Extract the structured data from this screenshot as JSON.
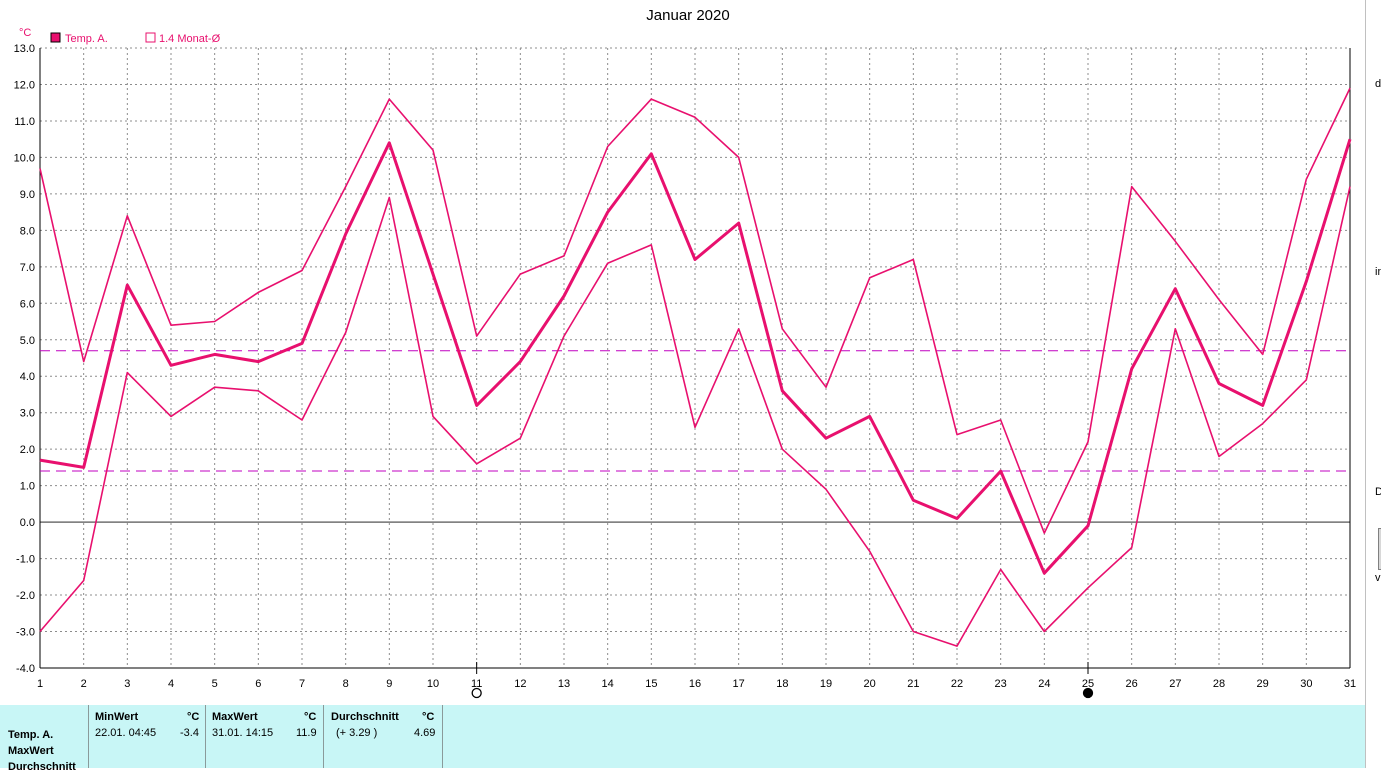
{
  "chart_data": {
    "type": "line",
    "title": "Januar 2020",
    "ylabel": "°C",
    "ylim": [
      -4.0,
      13.0
    ],
    "yticks": [
      "13.0",
      "12.0",
      "11.0",
      "10.0",
      "9.0",
      "8.0",
      "7.0",
      "6.0",
      "5.0",
      "4.0",
      "3.0",
      "2.0",
      "1.0",
      "0.0",
      "-1.0",
      "-2.0",
      "-3.0",
      "-4.0"
    ],
    "x": [
      1,
      2,
      3,
      4,
      5,
      6,
      7,
      8,
      9,
      10,
      11,
      12,
      13,
      14,
      15,
      16,
      17,
      18,
      19,
      20,
      21,
      22,
      23,
      24,
      25,
      26,
      27,
      28,
      29,
      30,
      31
    ],
    "grid": true,
    "legend_position": "top-left",
    "legend": [
      {
        "label": "Temp. A.",
        "marker": "filled"
      },
      {
        "label": "1.4 Monat-Ø",
        "marker": "hollow"
      }
    ],
    "series": [
      {
        "name": "Temp. A.",
        "role": "mean",
        "values": [
          1.7,
          1.5,
          6.5,
          4.3,
          4.6,
          4.4,
          4.9,
          7.9,
          10.4,
          6.8,
          3.2,
          4.4,
          6.2,
          8.5,
          10.1,
          7.2,
          8.2,
          3.6,
          2.3,
          2.9,
          0.6,
          0.1,
          1.4,
          -1.4,
          -0.1,
          4.2,
          6.4,
          3.8,
          3.2,
          6.6,
          10.5
        ]
      },
      {
        "role": "max",
        "values": [
          9.7,
          4.4,
          8.4,
          5.4,
          5.5,
          6.3,
          6.9,
          9.2,
          11.6,
          10.2,
          5.1,
          6.8,
          7.3,
          10.3,
          11.6,
          11.1,
          10.0,
          5.3,
          3.7,
          6.7,
          7.2,
          2.4,
          2.8,
          -0.3,
          2.2,
          9.2,
          7.7,
          6.1,
          4.6,
          9.4,
          11.9
        ]
      },
      {
        "role": "min",
        "values": [
          -3.0,
          -1.6,
          4.1,
          2.9,
          3.7,
          3.6,
          2.8,
          5.2,
          8.9,
          2.9,
          1.6,
          2.3,
          5.1,
          7.1,
          7.6,
          2.6,
          5.3,
          2.0,
          0.9,
          -0.8,
          -3.0,
          -3.4,
          -1.3,
          -3.0,
          -1.8,
          -0.7,
          5.3,
          1.8,
          2.7,
          3.9,
          9.2
        ]
      }
    ],
    "reference_lines": [
      4.7,
      1.4
    ],
    "moon_phases": [
      {
        "day": 11,
        "phase": "full"
      },
      {
        "day": 25,
        "phase": "new"
      }
    ],
    "colors": {
      "series": "#e8106e",
      "grid": "#8c8c8c",
      "axis_text": "#000000",
      "reference": "#c000c0",
      "title": "#000000"
    }
  },
  "stats": {
    "row_labels": [
      "Temp. A.",
      "MaxWert",
      "Durchschnitt"
    ],
    "min": {
      "header": "MinWert",
      "unit": "°C",
      "datetime": "22.01.  04:45",
      "value": "-3.4"
    },
    "max": {
      "header": "MaxWert",
      "unit": "°C",
      "datetime": "31.01.  14:15",
      "value": "11.9"
    },
    "avg": {
      "header": "Durchschnitt",
      "unit": "°C",
      "deviation": "(+ 3.29 )",
      "value": "4.69"
    },
    "panel_color": "#c8f6f6"
  },
  "right_strip_fragments": [
    "d",
    "in",
    "D",
    "vi"
  ]
}
